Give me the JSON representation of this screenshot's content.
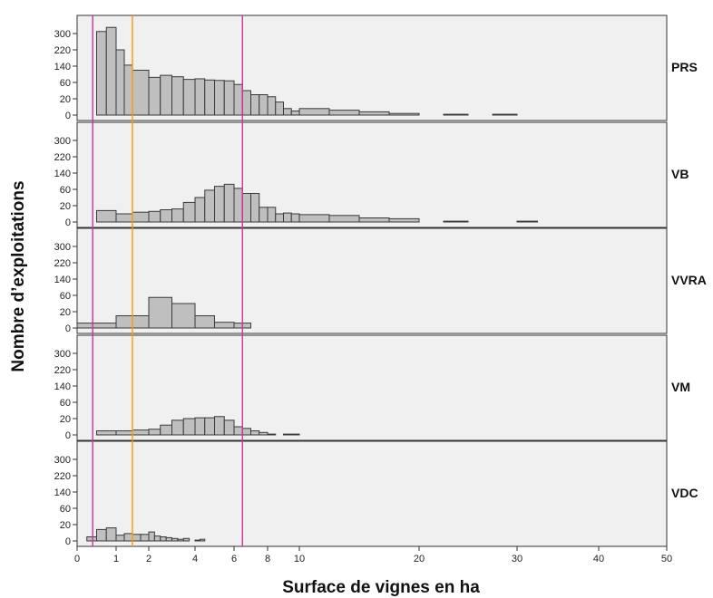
{
  "chart_data": {
    "type": "bar",
    "xlabel": "Surface de vignes en ha",
    "ylabel": "Nombre d’exploitations",
    "x_ticks": [
      "0",
      "1",
      "2",
      "4",
      "6",
      "8",
      "10",
      "20",
      "30",
      "40",
      "50"
    ],
    "y_ticks": [
      "0",
      "20",
      "60",
      "140",
      "220",
      "300"
    ],
    "reference_lines": [
      {
        "x": 0.4,
        "color": "#cc3399"
      },
      {
        "x": 1.5,
        "color": "#ff9900"
      },
      {
        "x": 6.5,
        "color": "#cc3399"
      }
    ],
    "panels": [
      {
        "label": "PRS",
        "bins": [
          {
            "x0": 0.5,
            "x1": 0.75,
            "value": 310
          },
          {
            "x0": 0.75,
            "x1": 1.0,
            "value": 330
          },
          {
            "x0": 1.0,
            "x1": 1.25,
            "value": 220
          },
          {
            "x0": 1.25,
            "x1": 1.5,
            "value": 145
          },
          {
            "x0": 1.5,
            "x1": 2.0,
            "value": 120
          },
          {
            "x0": 2.0,
            "x1": 2.5,
            "value": 85
          },
          {
            "x0": 2.5,
            "x1": 3.0,
            "value": 95
          },
          {
            "x0": 3.0,
            "x1": 3.5,
            "value": 88
          },
          {
            "x0": 3.5,
            "x1": 4.0,
            "value": 75
          },
          {
            "x0": 4.0,
            "x1": 4.5,
            "value": 78
          },
          {
            "x0": 4.5,
            "x1": 5.0,
            "value": 72
          },
          {
            "x0": 5.0,
            "x1": 5.5,
            "value": 70
          },
          {
            "x0": 5.5,
            "x1": 6.0,
            "value": 68
          },
          {
            "x0": 6.0,
            "x1": 6.5,
            "value": 55
          },
          {
            "x0": 6.5,
            "x1": 7.0,
            "value": 40
          },
          {
            "x0": 7.0,
            "x1": 7.5,
            "value": 30
          },
          {
            "x0": 7.5,
            "x1": 8.0,
            "value": 30
          },
          {
            "x0": 8.0,
            "x1": 8.5,
            "value": 25
          },
          {
            "x0": 8.5,
            "x1": 9.0,
            "value": 16
          },
          {
            "x0": 9.0,
            "x1": 9.5,
            "value": 8
          },
          {
            "x0": 9.5,
            "x1": 10.0,
            "value": 5
          },
          {
            "x0": 10.0,
            "x1": 12.5,
            "value": 8
          },
          {
            "x0": 12.5,
            "x1": 15.0,
            "value": 6
          },
          {
            "x0": 15.0,
            "x1": 17.5,
            "value": 4
          },
          {
            "x0": 17.5,
            "x1": 20.0,
            "value": 2
          },
          {
            "x0": 22.5,
            "x1": 25.0,
            "value": 1
          },
          {
            "x0": 27.5,
            "x1": 30.0,
            "value": 1
          }
        ]
      },
      {
        "label": "VB",
        "bins": [
          {
            "x0": 0.5,
            "x1": 1.0,
            "value": 14
          },
          {
            "x0": 1.0,
            "x1": 1.5,
            "value": 10
          },
          {
            "x0": 1.5,
            "x1": 2.0,
            "value": 12
          },
          {
            "x0": 2.0,
            "x1": 2.5,
            "value": 13
          },
          {
            "x0": 2.5,
            "x1": 3.0,
            "value": 15
          },
          {
            "x0": 3.0,
            "x1": 3.5,
            "value": 16
          },
          {
            "x0": 3.5,
            "x1": 4.0,
            "value": 28
          },
          {
            "x0": 4.0,
            "x1": 4.5,
            "value": 40
          },
          {
            "x0": 4.5,
            "x1": 5.0,
            "value": 58
          },
          {
            "x0": 5.0,
            "x1": 5.5,
            "value": 75
          },
          {
            "x0": 5.5,
            "x1": 6.0,
            "value": 85
          },
          {
            "x0": 6.0,
            "x1": 6.5,
            "value": 65
          },
          {
            "x0": 6.5,
            "x1": 7.0,
            "value": 50
          },
          {
            "x0": 7.0,
            "x1": 7.5,
            "value": 50
          },
          {
            "x0": 7.5,
            "x1": 8.0,
            "value": 18
          },
          {
            "x0": 8.0,
            "x1": 8.5,
            "value": 18
          },
          {
            "x0": 8.5,
            "x1": 9.0,
            "value": 10
          },
          {
            "x0": 9.0,
            "x1": 9.5,
            "value": 11
          },
          {
            "x0": 9.5,
            "x1": 10.0,
            "value": 10
          },
          {
            "x0": 10.0,
            "x1": 12.5,
            "value": 9
          },
          {
            "x0": 12.5,
            "x1": 15.0,
            "value": 8
          },
          {
            "x0": 15.0,
            "x1": 17.5,
            "value": 5
          },
          {
            "x0": 17.5,
            "x1": 20.0,
            "value": 4
          },
          {
            "x0": 22.5,
            "x1": 25.0,
            "value": 1
          },
          {
            "x0": 30.0,
            "x1": 32.5,
            "value": 1
          }
        ]
      },
      {
        "label": "VVRA",
        "bins": [
          {
            "x0": 0.0,
            "x1": 1.0,
            "value": 6
          },
          {
            "x0": 1.0,
            "x1": 2.0,
            "value": 15
          },
          {
            "x0": 2.0,
            "x1": 3.0,
            "value": 55
          },
          {
            "x0": 3.0,
            "x1": 4.0,
            "value": 40
          },
          {
            "x0": 4.0,
            "x1": 5.0,
            "value": 15
          },
          {
            "x0": 5.0,
            "x1": 6.0,
            "value": 7
          },
          {
            "x0": 6.0,
            "x1": 7.0,
            "value": 6
          }
        ]
      },
      {
        "label": "VM",
        "bins": [
          {
            "x0": 0.5,
            "x1": 1.0,
            "value": 5
          },
          {
            "x0": 1.0,
            "x1": 1.5,
            "value": 5
          },
          {
            "x0": 1.5,
            "x1": 2.0,
            "value": 6
          },
          {
            "x0": 2.0,
            "x1": 2.5,
            "value": 7
          },
          {
            "x0": 2.5,
            "x1": 3.0,
            "value": 12
          },
          {
            "x0": 3.0,
            "x1": 3.5,
            "value": 18
          },
          {
            "x0": 3.5,
            "x1": 4.0,
            "value": 20
          },
          {
            "x0": 4.0,
            "x1": 4.5,
            "value": 22
          },
          {
            "x0": 4.5,
            "x1": 5.0,
            "value": 22
          },
          {
            "x0": 5.0,
            "x1": 5.5,
            "value": 25
          },
          {
            "x0": 5.5,
            "x1": 6.0,
            "value": 18
          },
          {
            "x0": 6.0,
            "x1": 6.5,
            "value": 10
          },
          {
            "x0": 6.5,
            "x1": 7.0,
            "value": 8
          },
          {
            "x0": 7.0,
            "x1": 7.5,
            "value": 5
          },
          {
            "x0": 7.5,
            "x1": 8.0,
            "value": 3
          },
          {
            "x0": 8.0,
            "x1": 8.5,
            "value": 1
          },
          {
            "x0": 9.0,
            "x1": 9.5,
            "value": 1
          },
          {
            "x0": 9.5,
            "x1": 10.0,
            "value": 1
          }
        ]
      },
      {
        "label": "VDC",
        "bins": [
          {
            "x0": 0.25,
            "x1": 0.5,
            "value": 5
          },
          {
            "x0": 0.5,
            "x1": 0.75,
            "value": 14
          },
          {
            "x0": 0.75,
            "x1": 1.0,
            "value": 16
          },
          {
            "x0": 1.0,
            "x1": 1.25,
            "value": 7
          },
          {
            "x0": 1.25,
            "x1": 1.5,
            "value": 9
          },
          {
            "x0": 1.5,
            "x1": 1.75,
            "value": 8
          },
          {
            "x0": 1.75,
            "x1": 2.0,
            "value": 8
          },
          {
            "x0": 2.0,
            "x1": 2.25,
            "value": 11
          },
          {
            "x0": 2.25,
            "x1": 2.5,
            "value": 6
          },
          {
            "x0": 2.5,
            "x1": 2.75,
            "value": 5
          },
          {
            "x0": 2.75,
            "x1": 3.0,
            "value": 4
          },
          {
            "x0": 3.0,
            "x1": 3.25,
            "value": 3
          },
          {
            "x0": 3.25,
            "x1": 3.5,
            "value": 2
          },
          {
            "x0": 3.5,
            "x1": 3.75,
            "value": 3
          },
          {
            "x0": 4.0,
            "x1": 4.25,
            "value": 1
          },
          {
            "x0": 4.25,
            "x1": 4.5,
            "value": 2
          }
        ]
      }
    ],
    "colors": {
      "bar_fill": "#bfbfbf",
      "bar_stroke": "#3a3a3a",
      "panel_bg": "#f0f0f0",
      "magenta": "#cc3399",
      "orange": "#ff9900"
    }
  }
}
